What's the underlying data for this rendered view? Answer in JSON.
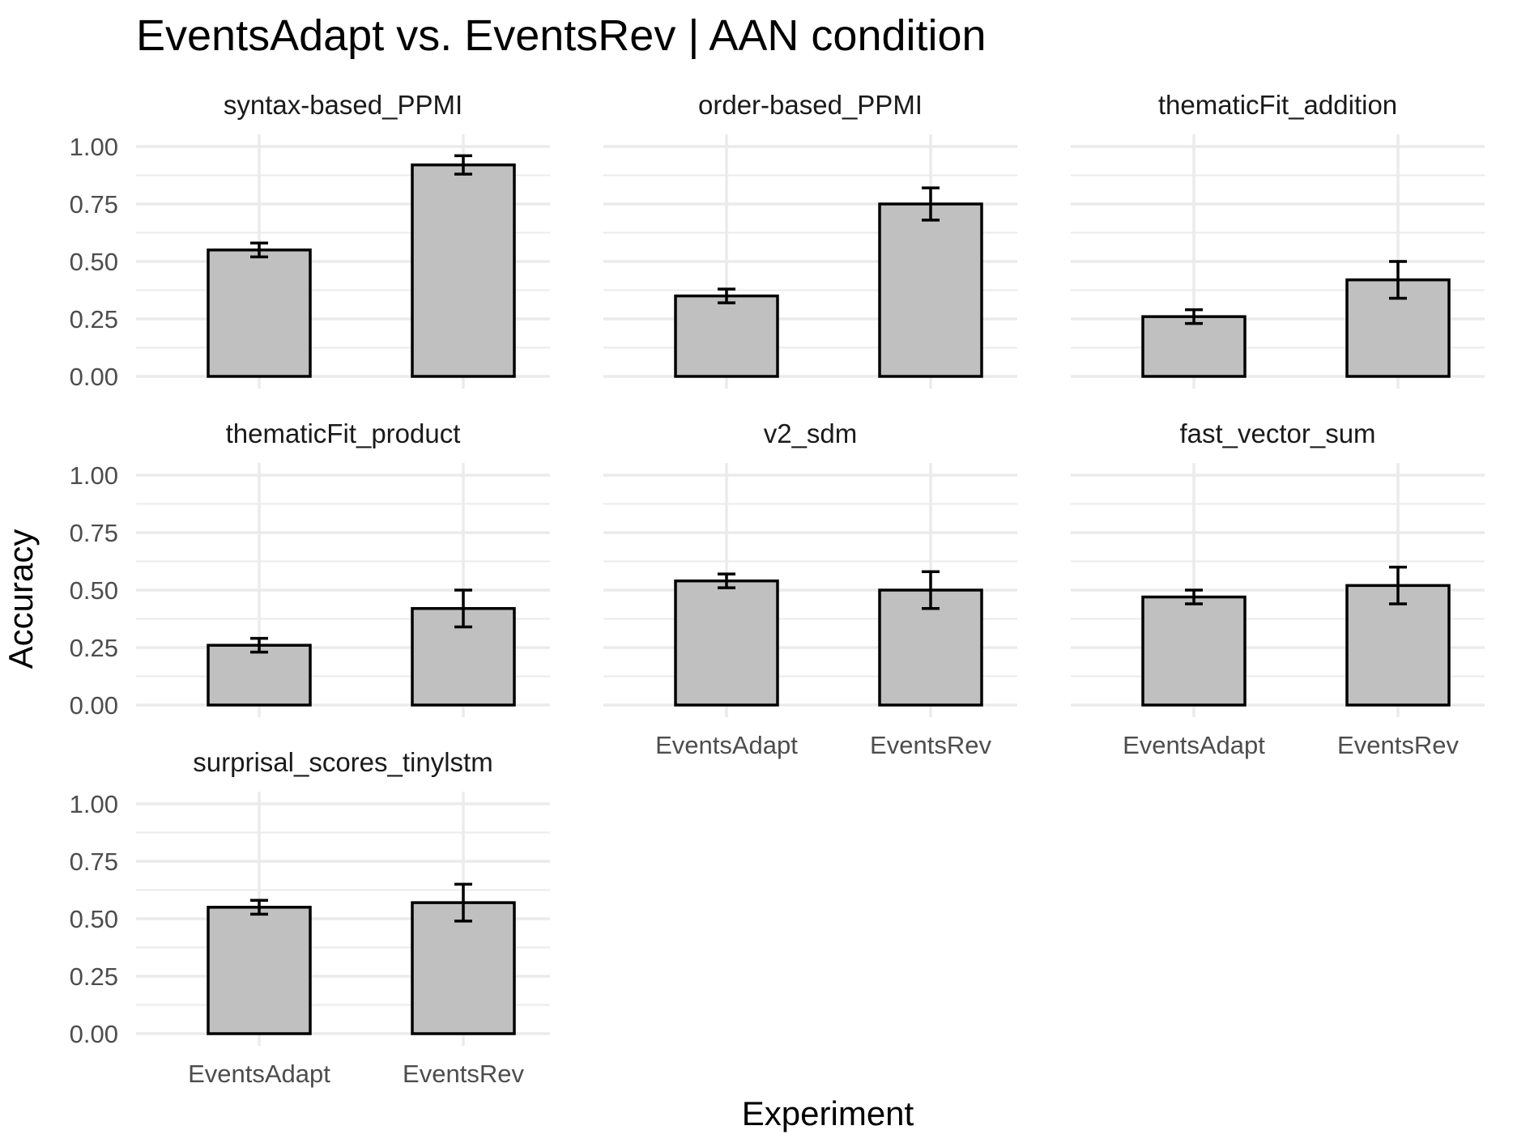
{
  "chart_data": {
    "type": "bar",
    "title": "EventsAdapt vs. EventsRev | AAN condition",
    "xlabel": "Experiment",
    "ylabel": "Accuracy",
    "ylim": [
      0,
      1
    ],
    "yticks": [
      "0.00",
      "0.25",
      "0.50",
      "0.75",
      "1.00"
    ],
    "categories": [
      "EventsAdapt",
      "EventsRev"
    ],
    "grid": true,
    "legend": "none",
    "colors": {
      "bar_fill": "#c0c0c0",
      "bar_stroke": "#000000",
      "grid": "#ebebeb",
      "error_bar": "#000000"
    },
    "panels": [
      {
        "name": "syntax-based_PPMI",
        "values": [
          0.55,
          0.92
        ],
        "error": [
          0.03,
          0.04
        ]
      },
      {
        "name": "order-based_PPMI",
        "values": [
          0.35,
          0.75
        ],
        "error": [
          0.03,
          0.07
        ]
      },
      {
        "name": "thematicFit_addition",
        "values": [
          0.26,
          0.42
        ],
        "error": [
          0.03,
          0.08
        ]
      },
      {
        "name": "thematicFit_product",
        "values": [
          0.26,
          0.42
        ],
        "error": [
          0.03,
          0.08
        ]
      },
      {
        "name": "v2_sdm",
        "values": [
          0.54,
          0.5
        ],
        "error": [
          0.03,
          0.08
        ]
      },
      {
        "name": "fast_vector_sum",
        "values": [
          0.47,
          0.52
        ],
        "error": [
          0.03,
          0.08
        ]
      },
      {
        "name": "surprisal_scores_tinylstm",
        "values": [
          0.55,
          0.57
        ],
        "error": [
          0.03,
          0.08
        ]
      }
    ]
  }
}
